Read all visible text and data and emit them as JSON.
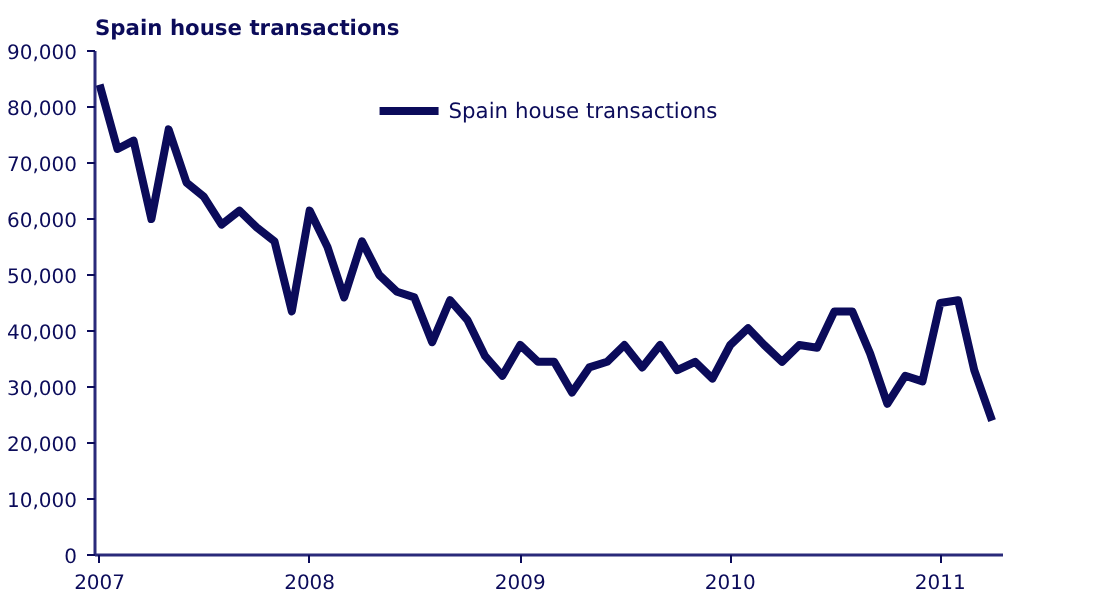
{
  "chart_data": {
    "type": "line",
    "title": "Spain house transactions",
    "x": [
      "2007-01",
      "2007-02",
      "2007-03",
      "2007-04",
      "2007-05",
      "2007-06",
      "2007-07",
      "2007-08",
      "2007-09",
      "2007-10",
      "2007-11",
      "2007-12",
      "2008-01",
      "2008-02",
      "2008-03",
      "2008-04",
      "2008-05",
      "2008-06",
      "2008-07",
      "2008-08",
      "2008-09",
      "2008-10",
      "2008-11",
      "2008-12",
      "2009-01",
      "2009-02",
      "2009-03",
      "2009-04",
      "2009-05",
      "2009-06",
      "2009-07",
      "2009-08",
      "2009-09",
      "2009-10",
      "2009-11",
      "2009-12",
      "2010-01",
      "2010-02",
      "2010-03",
      "2010-04",
      "2010-05",
      "2010-06",
      "2010-07",
      "2010-08",
      "2010-09",
      "2010-10",
      "2010-11",
      "2010-12",
      "2011-01",
      "2011-02",
      "2011-03",
      "2011-04"
    ],
    "series": [
      {
        "name": "Spain house transactions",
        "color": "#0b0b5a",
        "values": [
          84000,
          72500,
          74000,
          60000,
          76000,
          66500,
          64000,
          59000,
          61500,
          58500,
          56000,
          43500,
          61500,
          55000,
          46000,
          56000,
          50000,
          47000,
          46000,
          38000,
          45500,
          42000,
          35500,
          32000,
          37500,
          34500,
          34500,
          29000,
          33500,
          34500,
          37500,
          33500,
          37500,
          33000,
          34500,
          31500,
          37500,
          40500,
          37500,
          34500,
          37500,
          37000,
          43500,
          43500,
          36000,
          27000,
          32000,
          31000,
          45000,
          45500,
          33000,
          24000
        ]
      }
    ],
    "xlim": [
      "2006-12-24",
      "2011-04-20"
    ],
    "xticks": [
      "2007",
      "2008",
      "2009",
      "2010",
      "2011"
    ],
    "ylim": [
      0,
      90000
    ],
    "yticks": [
      0,
      {
        "value": 10000,
        "label": "10,000"
      },
      {
        "value": 20000,
        "label": "20,000"
      },
      {
        "value": 30000,
        "label": "30,000"
      },
      {
        "value": 40000,
        "label": "40,000"
      },
      {
        "value": 50000,
        "label": "50,000"
      },
      {
        "value": 60000,
        "label": "60,000"
      },
      {
        "value": 70000,
        "label": "70,000"
      },
      {
        "value": 80000,
        "label": "80,000"
      },
      {
        "value": 90000,
        "label": "90,000"
      }
    ],
    "grid": false,
    "legend": "top",
    "marker": "none",
    "line_style": "solid"
  }
}
